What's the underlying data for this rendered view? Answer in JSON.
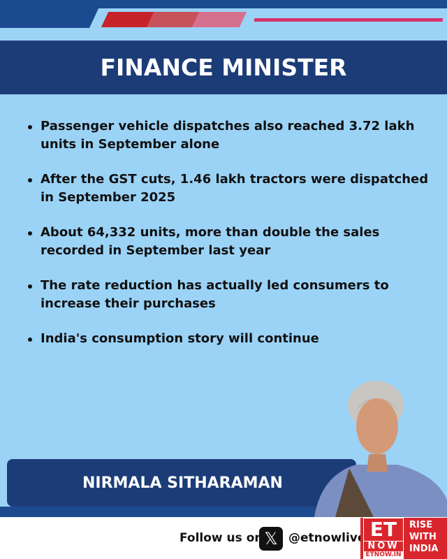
{
  "header": {
    "title": "FINANCE MINISTER",
    "accent_colors": [
      "#c62229",
      "#c7525a",
      "#d6708f"
    ]
  },
  "bullets": [
    "Passenger vehicle dispatches also reached 3.72 lakh units in September alone",
    "After the GST cuts, 1.46 lakh tractors were dispatched in September 2025",
    "About 64,332 units, more than double the sales recorded in September last year",
    "The rate reduction has actually led consumers to increase their purchases",
    "India's consumption story will continue"
  ],
  "speaker": {
    "name": "NIRMALA SITHARAMAN"
  },
  "footer": {
    "follow_text": "Follow us on",
    "social_icon": "x-icon",
    "handle": "@etnowlive",
    "logo": {
      "et": "ET",
      "now": "NOW",
      "url": "ETNOW.IN",
      "tagline": [
        "RISE",
        "WITH",
        "INDIA"
      ]
    }
  }
}
